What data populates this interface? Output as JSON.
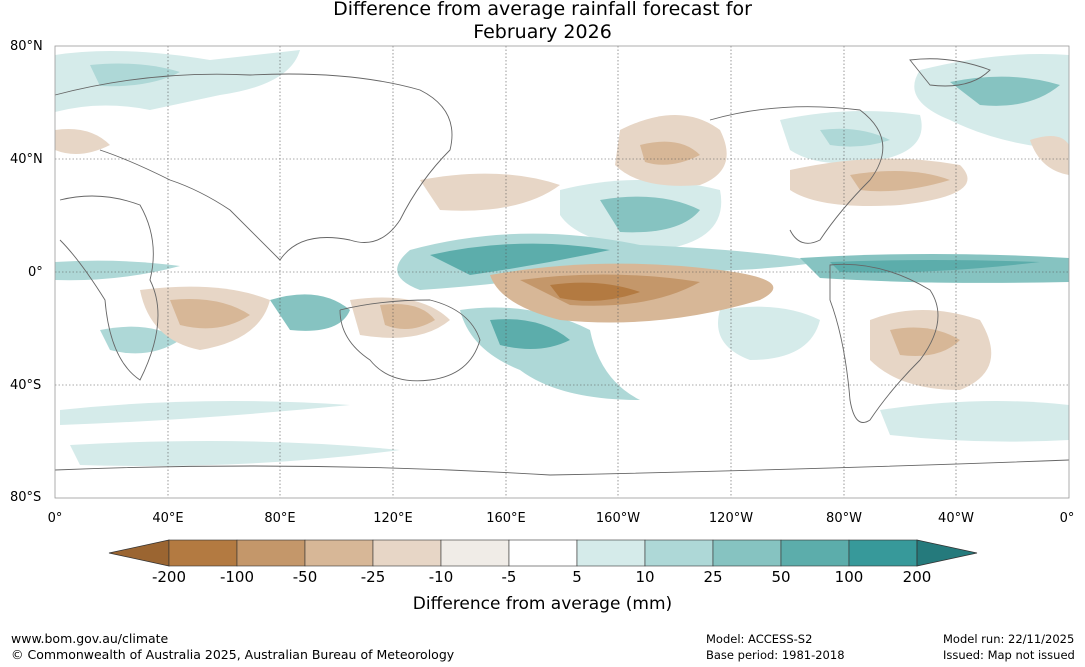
{
  "title": {
    "line1": "Difference from average rainfall forecast for",
    "line2": "February 2026"
  },
  "latitude_labels": [
    "80°N",
    "40°N",
    "0°",
    "40°S",
    "80°S"
  ],
  "longitude_labels": [
    "0°",
    "40°E",
    "80°E",
    "120°E",
    "160°E",
    "160°W",
    "120°W",
    "80°W",
    "40°W",
    "0°"
  ],
  "colorbar": {
    "ticks": [
      "-200",
      "-100",
      "-50",
      "-25",
      "-10",
      "-5",
      "5",
      "10",
      "25",
      "50",
      "100",
      "200"
    ],
    "colors": [
      "#9b6531",
      "#b37a41",
      "#c4976a",
      "#d7b797",
      "#e7d6c6",
      "#f0ece7",
      "#ffffff",
      "#d5ebea",
      "#aed8d7",
      "#86c3c1",
      "#5cadab",
      "#37999a",
      "#257a7c"
    ],
    "label": "Difference from average (mm)"
  },
  "footer": {
    "website": "www.bom.gov.au/climate",
    "copyright": "© Commonwealth of Australia 2025, Australian Bureau of Meteorology",
    "model": "Model: ACCESS-S2",
    "base_period": "Base period: 1981-2018",
    "model_run": "Model run: 22/11/2025",
    "issued": "Issued: Map not issued"
  }
}
